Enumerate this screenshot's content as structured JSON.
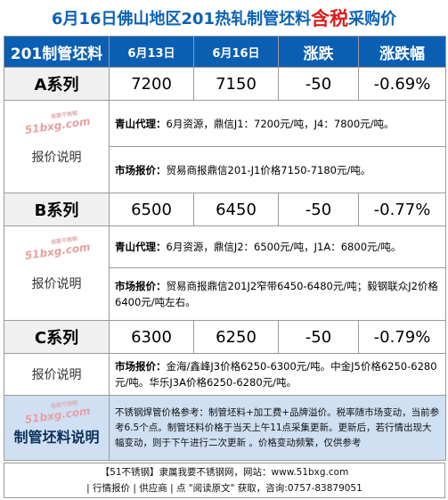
{
  "title": {
    "prefix": "6月16日佛山地区201热轧制管坯料",
    "highlight": "含税",
    "suffix": "采购价"
  },
  "header": {
    "product": "201制管坯料",
    "date1": "6月13日",
    "date2": "6月16日",
    "change": "涨跌",
    "change_pct": "涨跌幅"
  },
  "rows": [
    {
      "label": "A系列",
      "v1": "7200",
      "v2": "7150",
      "chg": "-50",
      "pct": "-0.69%"
    },
    {
      "label": "B系列",
      "v1": "6500",
      "v2": "6450",
      "chg": "-50",
      "pct": "-0.77%"
    },
    {
      "label": "C系列",
      "v1": "6300",
      "v2": "6250",
      "chg": "-50",
      "pct": "-0.79%"
    }
  ],
  "note_label": "报价说明",
  "watermark": {
    "text": "51bxg.com",
    "sub": "我要不锈钢"
  },
  "notes": {
    "a1_key": "青山代理：",
    "a1_val": "6月资源，鼎信J1：7200元/吨，J4：7800元/吨。",
    "a2_key": "市场报价：",
    "a2_val": "贸易商报鼎信201-J1价格7150-7180元/吨。",
    "b1_key": "青山代理：",
    "b1_val": "6月资源，鼎信J2：6500元/吨，J1A：6800元/吨。",
    "b2_key": "市场报价：",
    "b2_val": "贸易商报鼎信201J2窄带6450-6480元/吨；毅钢联众J2价格6400元/吨左右。",
    "c1_key": "市场报价：",
    "c1_val": "金海/鑫峰J3价格6250-6300元/吨。中金J5价格6250-6280元/吨。华乐J3A价格6250-6280元/吨。"
  },
  "description": {
    "label": "制管坯料说明",
    "text": "不锈钢焊管价格参考：制管坯料+加工费+品牌溢价。税率随市场变动，当前参考6.5个点。制管坯料价格于当天上午11点采集更新。更新后，若行情出现大幅变动，则于下午进行二次更新 。价格变动频繁，仅供参考"
  },
  "footer": {
    "line1": "【51不锈钢】隶属我要不锈钢网，网站：www.51bxg.com",
    "line2": "| 行情报价 | 供应商 | 点 \"阅读原文\" 获取，咨询:0757-83879051"
  }
}
